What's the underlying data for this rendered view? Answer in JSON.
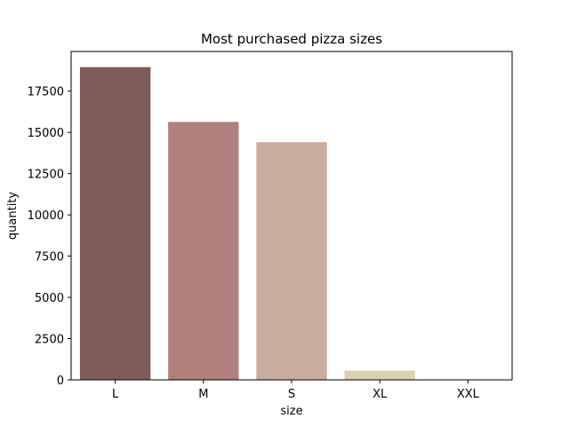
{
  "chart_data": {
    "type": "bar",
    "title": "Most purchased pizza sizes",
    "xlabel": "size",
    "ylabel": "quantity",
    "categories": [
      "L",
      "M",
      "S",
      "XL",
      "XXL"
    ],
    "values": [
      18956,
      15635,
      14403,
      552,
      28
    ],
    "ylim": [
      0,
      19904
    ],
    "yticks": [
      0,
      2500,
      5000,
      7500,
      10000,
      12500,
      15000,
      17500
    ],
    "ytick_labels": [
      "0",
      "2500",
      "5000",
      "7500",
      "10000",
      "12500",
      "15000",
      "17500"
    ],
    "colors": [
      "#7f5b5a",
      "#b0807e",
      "#c8ad9c",
      "#dbd0b1",
      "#dcd8d0"
    ],
    "grid": false,
    "legend": "none"
  }
}
